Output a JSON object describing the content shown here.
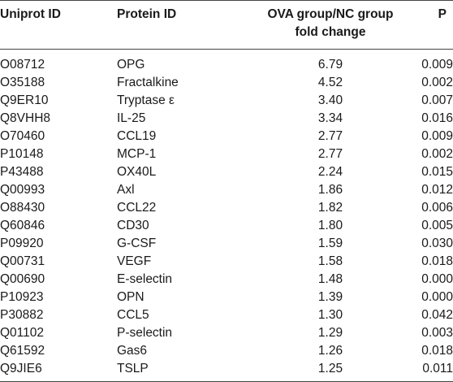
{
  "table": {
    "headers": {
      "uniprot": "Uniprot ID",
      "protein": "Protein ID",
      "fold_line1": "OVA group/NC group",
      "fold_line2": "fold change",
      "p": "P"
    },
    "rows": [
      {
        "uniprot": "O08712",
        "protein": "OPG",
        "fold": "6.79",
        "p": "0.009"
      },
      {
        "uniprot": "O35188",
        "protein": "Fractalkine",
        "fold": "4.52",
        "p": "0.002"
      },
      {
        "uniprot": "Q9ER10",
        "protein": "Tryptase ε",
        "fold": "3.40",
        "p": "0.007"
      },
      {
        "uniprot": "Q8VHH8",
        "protein": "IL-25",
        "fold": "3.34",
        "p": "0.016"
      },
      {
        "uniprot": "O70460",
        "protein": "CCL19",
        "fold": "2.77",
        "p": "0.009"
      },
      {
        "uniprot": "P10148",
        "protein": "MCP-1",
        "fold": "2.77",
        "p": "0.002"
      },
      {
        "uniprot": "P43488",
        "protein": "OX40L",
        "fold": "2.24",
        "p": "0.015"
      },
      {
        "uniprot": "Q00993",
        "protein": "Axl",
        "fold": "1.86",
        "p": "0.012"
      },
      {
        "uniprot": "O88430",
        "protein": "CCL22",
        "fold": "1.82",
        "p": "0.006"
      },
      {
        "uniprot": "Q60846",
        "protein": "CD30",
        "fold": "1.80",
        "p": "0.005"
      },
      {
        "uniprot": "P09920",
        "protein": "G-CSF",
        "fold": "1.59",
        "p": "0.030"
      },
      {
        "uniprot": "Q00731",
        "protein": "VEGF",
        "fold": "1.58",
        "p": "0.018"
      },
      {
        "uniprot": "Q00690",
        "protein": "E-selectin",
        "fold": "1.48",
        "p": "0.000"
      },
      {
        "uniprot": "P10923",
        "protein": "OPN",
        "fold": "1.39",
        "p": "0.000"
      },
      {
        "uniprot": "P30882",
        "protein": "CCL5",
        "fold": "1.30",
        "p": "0.042"
      },
      {
        "uniprot": "Q01102",
        "protein": "P-selectin",
        "fold": "1.29",
        "p": "0.003"
      },
      {
        "uniprot": "Q61592",
        "protein": "Gas6",
        "fold": "1.26",
        "p": "0.018"
      },
      {
        "uniprot": "Q9JIE6",
        "protein": "TSLP",
        "fold": "1.25",
        "p": "0.011"
      }
    ]
  }
}
